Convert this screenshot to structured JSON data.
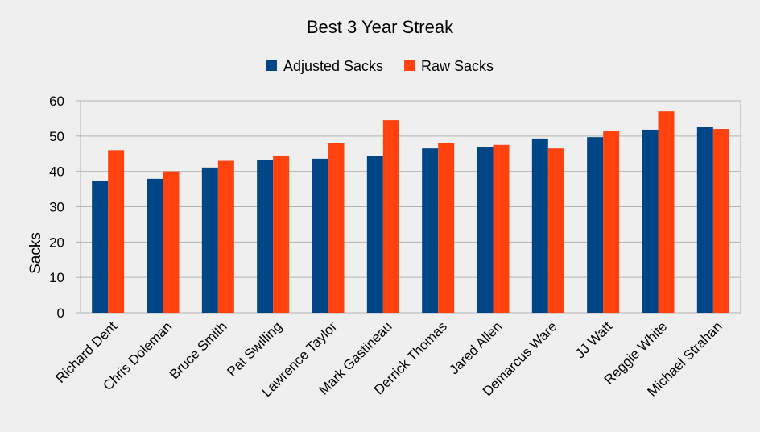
{
  "chart_data": {
    "type": "bar",
    "title": "Best 3 Year Streak",
    "ylabel": "Sacks",
    "xlabel": "",
    "ylim": [
      0,
      60
    ],
    "yticks": [
      0,
      10,
      20,
      30,
      40,
      50,
      60
    ],
    "grid": true,
    "legend_position": "top",
    "categories": [
      "Richard Dent",
      "Chris Doleman",
      "Bruce Smith",
      "Pat Swilling",
      "Lawrence Taylor",
      "Mark Gastineau",
      "Derrick Thomas",
      "Jared Allen",
      "Demarcus Ware",
      "JJ Watt",
      "Reggie White",
      "Michael Strahan"
    ],
    "series": [
      {
        "name": "Adjusted Sacks",
        "color": "#004586",
        "values": [
          37.2,
          37.9,
          41.1,
          43.3,
          43.6,
          44.3,
          46.5,
          46.8,
          49.3,
          49.7,
          51.8,
          52.6
        ]
      },
      {
        "name": "Raw Sacks",
        "color": "#ff420e",
        "values": [
          46.0,
          40.0,
          43.0,
          44.5,
          48.0,
          54.5,
          48.0,
          47.5,
          46.5,
          51.5,
          57.0,
          52.0
        ]
      }
    ]
  }
}
